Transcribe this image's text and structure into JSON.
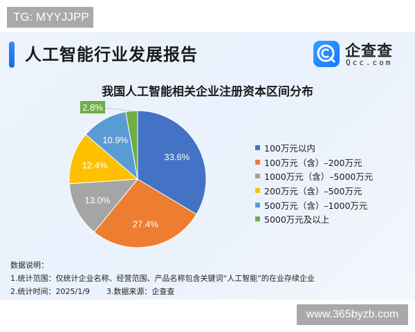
{
  "watermark_top": "TG: MYYJJPP",
  "watermark_bottom": "www.365byzb.com",
  "header": {
    "title": "人工智能行业发展报告",
    "logo": {
      "icon": "qcc-search-icon",
      "name_cn": "企查查",
      "name_en": "Qcc.com",
      "color": "#1677ff"
    }
  },
  "chart_data": {
    "type": "pie",
    "title": "我国人工智能相关企业注册资本区间分布",
    "start_angle": "12 o'clock, clockwise",
    "legend_position": "right",
    "categories": [
      "100万元以内",
      "100万元（含）-200万元",
      "1000万元（含）-5000万元",
      "200万元（含）-500万元",
      "500万元（含）-1000万元",
      "5000万元及以上"
    ],
    "values": [
      33.6,
      27.4,
      13.0,
      12.4,
      10.9,
      2.8
    ],
    "labels": [
      "33.6%",
      "27.4%",
      "13.0%",
      "12.4%",
      "10.9%",
      "2.8%"
    ],
    "colors": [
      "#4472c4",
      "#ed7d31",
      "#a5a5a5",
      "#ffc000",
      "#5b9bd5",
      "#70ad47"
    ],
    "unit": "%"
  },
  "legend": [
    {
      "label": "100万元以内",
      "color": "#4472c4"
    },
    {
      "label": "100万元（含）–200万元",
      "color": "#ed7d31"
    },
    {
      "label": "1000万元（含）–5000万元",
      "color": "#a5a5a5"
    },
    {
      "label": "200万元（含）–500万元",
      "color": "#ffc000"
    },
    {
      "label": "500万元（含）–1000万元",
      "color": "#5b9bd5"
    },
    {
      "label": "5000万元及以上",
      "color": "#70ad47"
    }
  ],
  "notes": {
    "heading": "数据说明：",
    "line1": "1.统计范围：仅统计企业名称、经营范围、产品名称包含关键词“人工智能”的在业存续企业",
    "line2a": "2.统计时间：2025/1/9",
    "line2b": "3.数据来源：企查查"
  }
}
